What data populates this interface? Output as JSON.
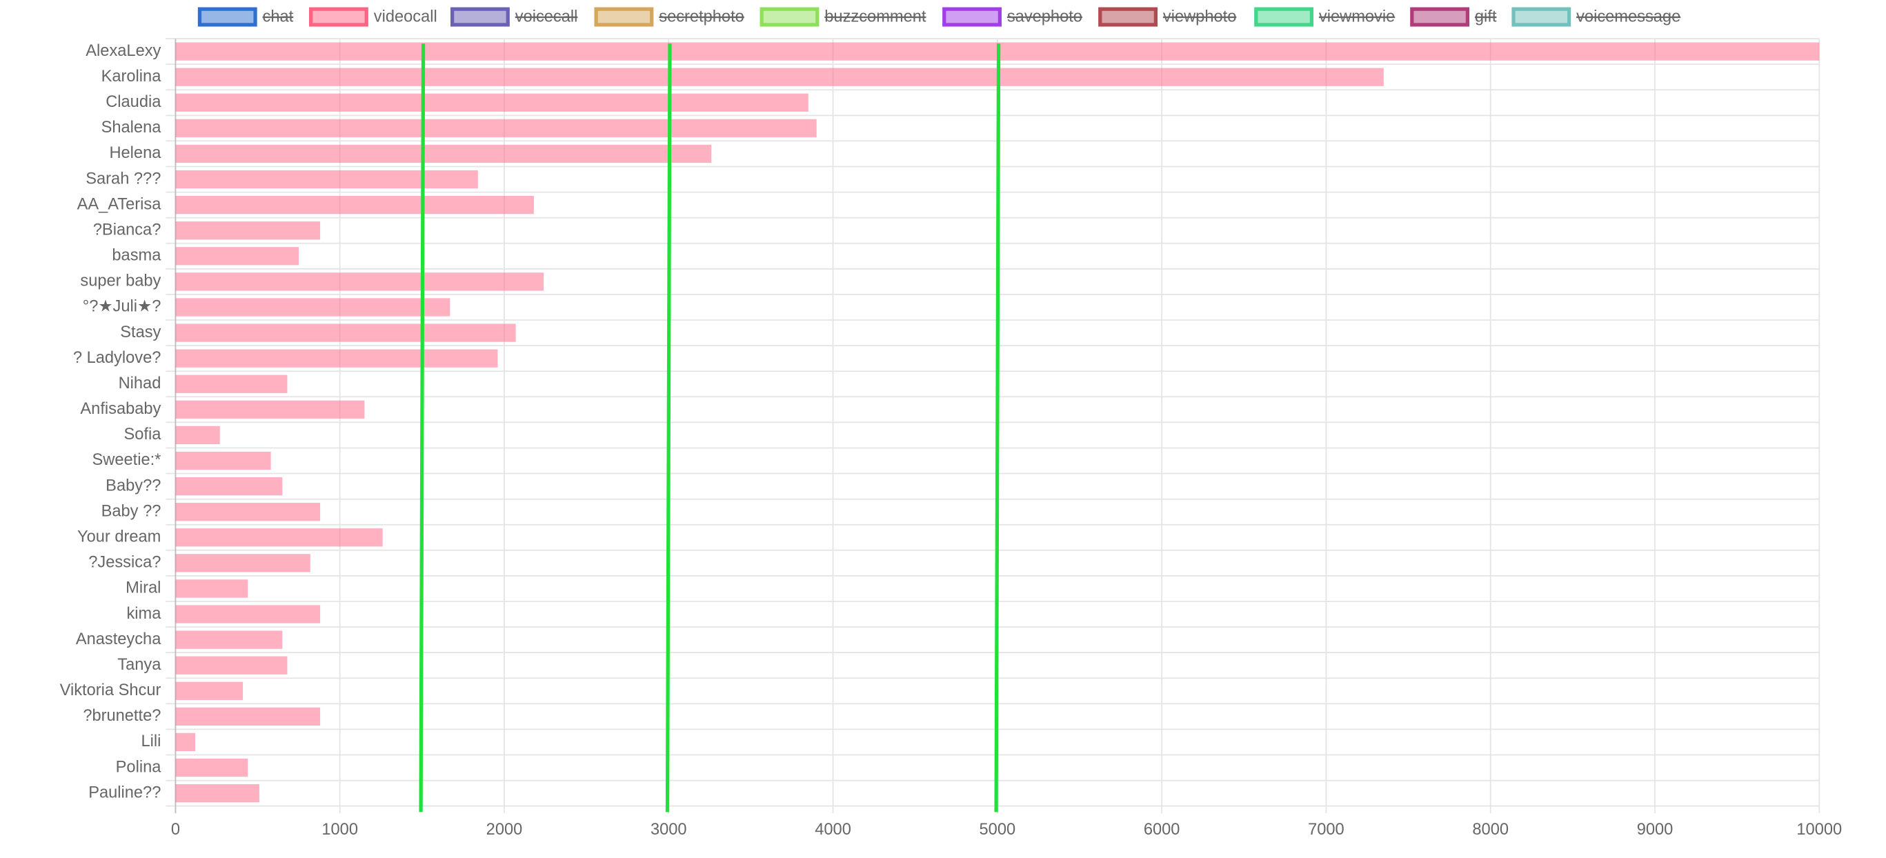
{
  "chart_data": {
    "type": "bar",
    "orientation": "horizontal",
    "categories": [
      "AlexaLexy",
      "Karolina",
      "Claudia",
      "Shalena",
      "Helena",
      "Sarah ???",
      "AA_ATerisa",
      "?Bianca?",
      "basma",
      "super baby",
      "°?★Juli★?",
      "Stasy",
      "? Ladylove?",
      "Nihad",
      "Anfisababy",
      "Sofia",
      "Sweetie:*",
      "Baby??",
      "Baby ??",
      "Your dream",
      "?Jessica?",
      "Miral",
      "kima",
      "Anasteycha",
      "Tanya",
      "Viktoria Shcur",
      "?brunette?",
      "Lili",
      "Polina",
      "Pauline??"
    ],
    "series": [
      {
        "name": "videocall",
        "color": "#ff6384",
        "values": [
          10000,
          7350,
          3850,
          3900,
          3260,
          1840,
          2180,
          880,
          750,
          2240,
          1670,
          2070,
          1960,
          680,
          1150,
          270,
          580,
          650,
          880,
          1260,
          820,
          440,
          880,
          650,
          680,
          410,
          880,
          120,
          440,
          510
        ]
      }
    ],
    "legend": [
      {
        "name": "chat",
        "color": "#2f6fd0",
        "hidden": true
      },
      {
        "name": "videocall",
        "color": "#ff6384",
        "hidden": false
      },
      {
        "name": "voicecall",
        "color": "#6a62b4",
        "hidden": true
      },
      {
        "name": "secretphoto",
        "color": "#d4a55a",
        "hidden": true
      },
      {
        "name": "buzzcomment",
        "color": "#8ee05a",
        "hidden": true
      },
      {
        "name": "savephoto",
        "color": "#a23ee8",
        "hidden": true
      },
      {
        "name": "viewphoto",
        "color": "#b24a52",
        "hidden": true
      },
      {
        "name": "viewmovie",
        "color": "#42d68a",
        "hidden": true
      },
      {
        "name": "gift",
        "color": "#b03c7a",
        "hidden": true
      },
      {
        "name": "voicemessage",
        "color": "#73c0bc",
        "hidden": true
      }
    ],
    "legend_position": "top",
    "xlim": [
      0,
      10000
    ],
    "xticks": [
      0,
      1000,
      2000,
      3000,
      4000,
      5000,
      6000,
      7000,
      8000,
      9000,
      10000
    ],
    "grid": true,
    "vlines": [
      1500,
      3000,
      5000
    ],
    "vline_color": "#22e03a"
  }
}
